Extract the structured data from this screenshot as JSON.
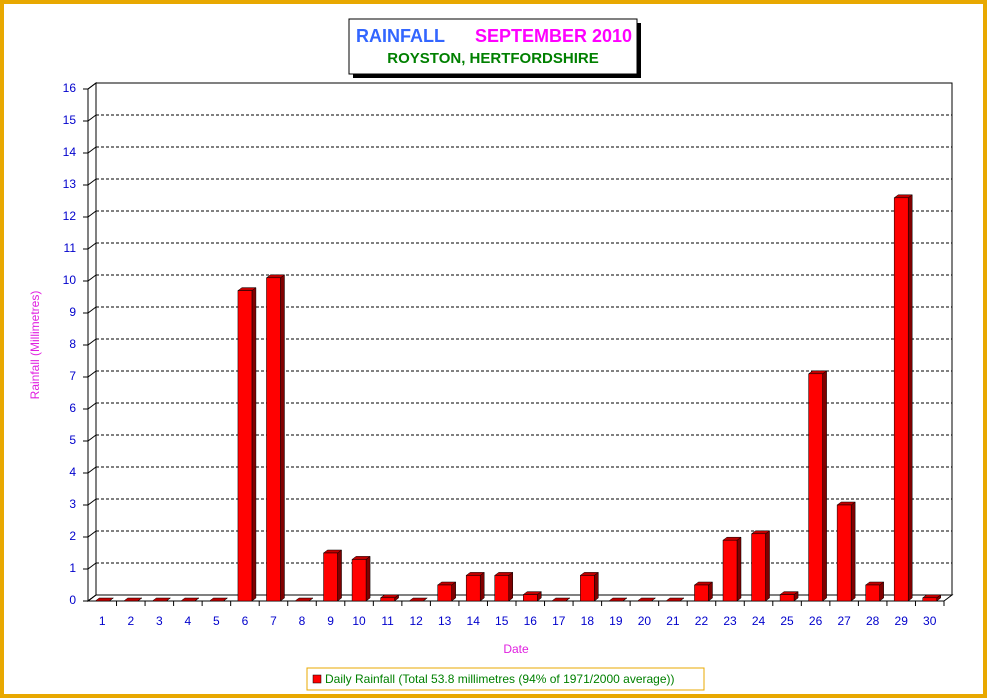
{
  "chart_data": {
    "type": "bar",
    "title": "RAINFALL",
    "title_date": "SEPTEMBER 2010",
    "subtitle": "ROYSTON, HERTFORDSHIRE",
    "x_label": "Date",
    "y_label": "Rainfall  (Millimetres)",
    "categories": [
      "1",
      "2",
      "3",
      "4",
      "5",
      "6",
      "7",
      "8",
      "9",
      "10",
      "11",
      "12",
      "13",
      "14",
      "15",
      "16",
      "17",
      "18",
      "19",
      "20",
      "21",
      "22",
      "23",
      "24",
      "25",
      "26",
      "27",
      "28",
      "29",
      "30"
    ],
    "series": [
      {
        "name": "Daily Rainfall (Total 53.8 millimetres (94% of 1971/2000 average))",
        "color": "#ff0000",
        "values": [
          0,
          0,
          0,
          0,
          0,
          9.7,
          10.1,
          0,
          1.5,
          1.3,
          0.1,
          0,
          0.5,
          0.8,
          0.8,
          0.2,
          0,
          0.8,
          0,
          0,
          0,
          0.5,
          1.9,
          2.1,
          0.2,
          7.1,
          3.0,
          0.5,
          12.6,
          0.1
        ]
      }
    ],
    "ylim": [
      0,
      16
    ],
    "yticks": [
      0,
      1,
      2,
      3,
      4,
      5,
      6,
      7,
      8,
      9,
      10,
      11,
      12,
      13,
      14,
      15,
      16
    ],
    "grid": true
  }
}
